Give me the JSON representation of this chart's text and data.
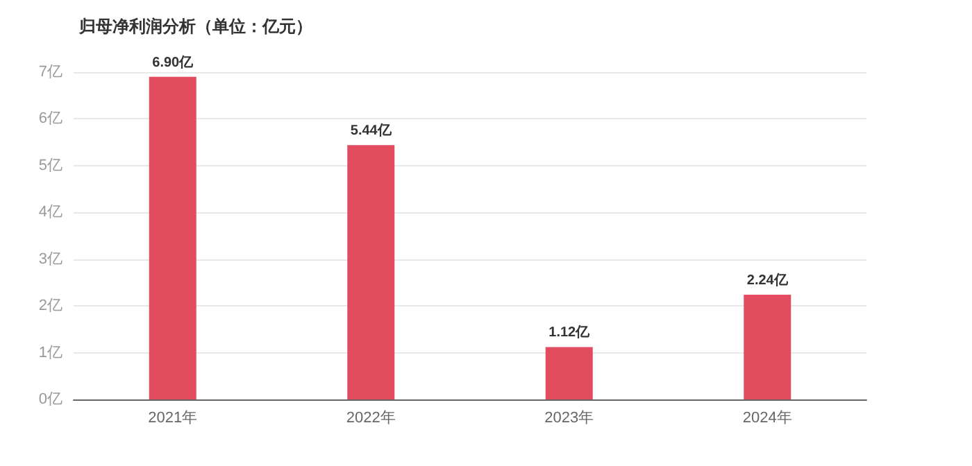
{
  "chart_data": {
    "type": "bar",
    "title": "归母净利润分析（单位：亿元）",
    "categories": [
      "2021年",
      "2022年",
      "2023年",
      "2024年"
    ],
    "values": [
      6.9,
      5.44,
      1.12,
      2.24
    ],
    "value_labels": [
      "6.90亿",
      "5.44亿",
      "1.12亿",
      "2.24亿"
    ],
    "color": "#e34b5f",
    "ylim": [
      0,
      7
    ],
    "yticks": [
      {
        "value": 0,
        "label": "0亿"
      },
      {
        "value": 1,
        "label": "1亿"
      },
      {
        "value": 2,
        "label": "2亿"
      },
      {
        "value": 3,
        "label": "3亿"
      },
      {
        "value": 4,
        "label": "4亿"
      },
      {
        "value": 5,
        "label": "5亿"
      },
      {
        "value": 6,
        "label": "6亿"
      },
      {
        "value": 7,
        "label": "7亿"
      }
    ],
    "grid": "y"
  }
}
